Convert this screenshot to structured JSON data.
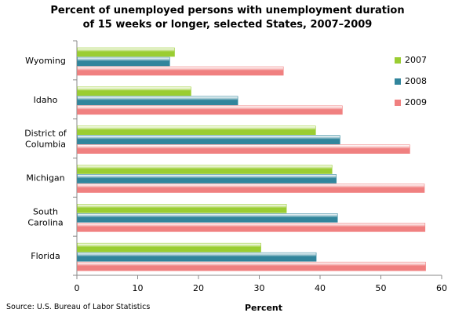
{
  "chart_data": {
    "type": "bar",
    "orientation": "horizontal",
    "title": "Percent of unemployed persons with unemployment duration of 15 weeks or longer, selected States, 2007–2009",
    "title_lines": [
      "Percent of unemployed persons with unemployment duration",
      "of 15 weeks or longer, selected States, 2007–2009"
    ],
    "xlabel": "Percent",
    "ylabel": "",
    "xlim": [
      0,
      60
    ],
    "xticks": [
      0,
      10,
      20,
      30,
      40,
      50,
      60
    ],
    "grid": false,
    "legend_position": "right",
    "categories": [
      [
        "Wyoming"
      ],
      [
        "Idaho"
      ],
      [
        "District of",
        "Columbia"
      ],
      [
        "Michigan"
      ],
      [
        "South",
        "Carolina"
      ],
      [
        "Florida"
      ]
    ],
    "series": [
      {
        "name": "2007",
        "color": "#9ACD32",
        "values": [
          16.0,
          18.7,
          39.2,
          41.9,
          34.4,
          30.2
        ]
      },
      {
        "name": "2008",
        "color": "#31859C",
        "values": [
          15.2,
          26.4,
          43.2,
          42.6,
          42.8,
          39.3
        ]
      },
      {
        "name": "2009",
        "color": "#F08080",
        "values": [
          33.9,
          43.6,
          54.7,
          57.1,
          57.2,
          57.3
        ]
      }
    ]
  },
  "source": "Source: U.S. Bureau of Labor Statistics"
}
